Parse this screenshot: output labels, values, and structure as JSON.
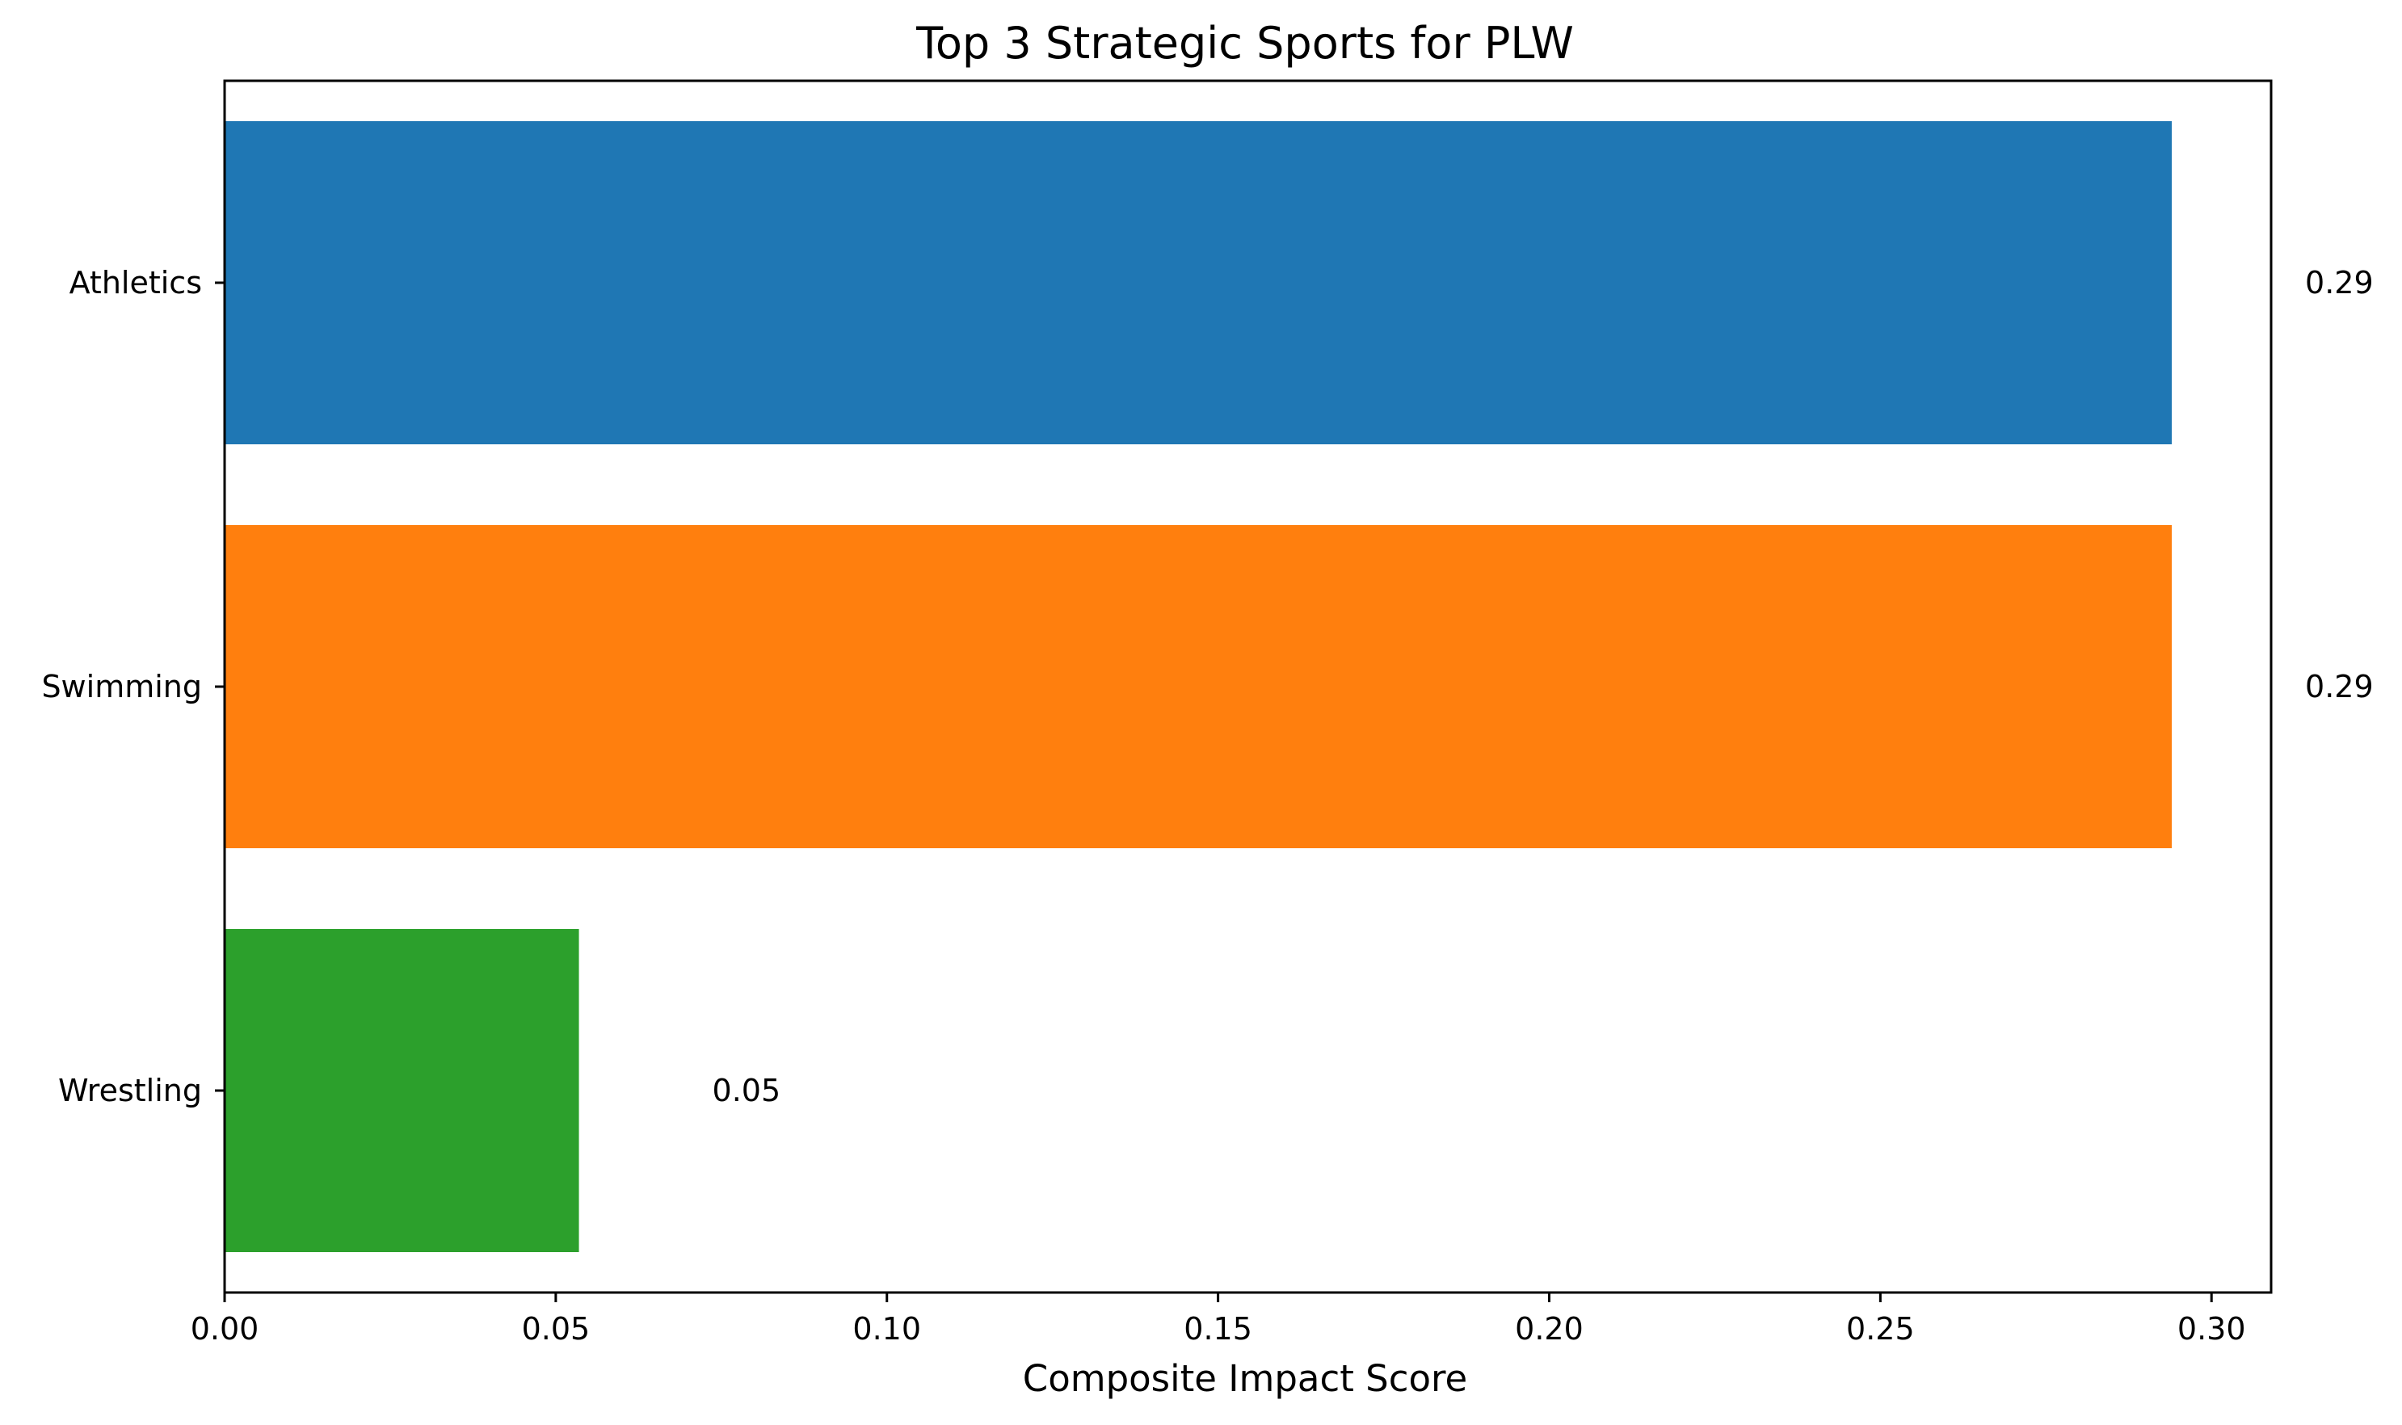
{
  "chart_data": {
    "type": "bar",
    "orientation": "horizontal",
    "title": "Top 3 Strategic Sports for PLW",
    "xlabel": "Composite Impact Score",
    "ylabel": "",
    "categories": [
      "Athletics",
      "Swimming",
      "Wrestling"
    ],
    "values": [
      0.294,
      0.294,
      0.0535
    ],
    "value_labels": [
      "0.29",
      "0.29",
      "0.05"
    ],
    "colors": [
      "#1f77b4",
      "#ff7f0e",
      "#2ca02c"
    ],
    "xlim": [
      0,
      0.309
    ],
    "xticks": [
      0.0,
      0.05,
      0.1,
      0.15,
      0.2,
      0.25,
      0.3
    ],
    "xtick_labels": [
      "0.00",
      "0.05",
      "0.10",
      "0.15",
      "0.20",
      "0.25",
      "0.30"
    ],
    "grid": false,
    "legend": "none"
  }
}
